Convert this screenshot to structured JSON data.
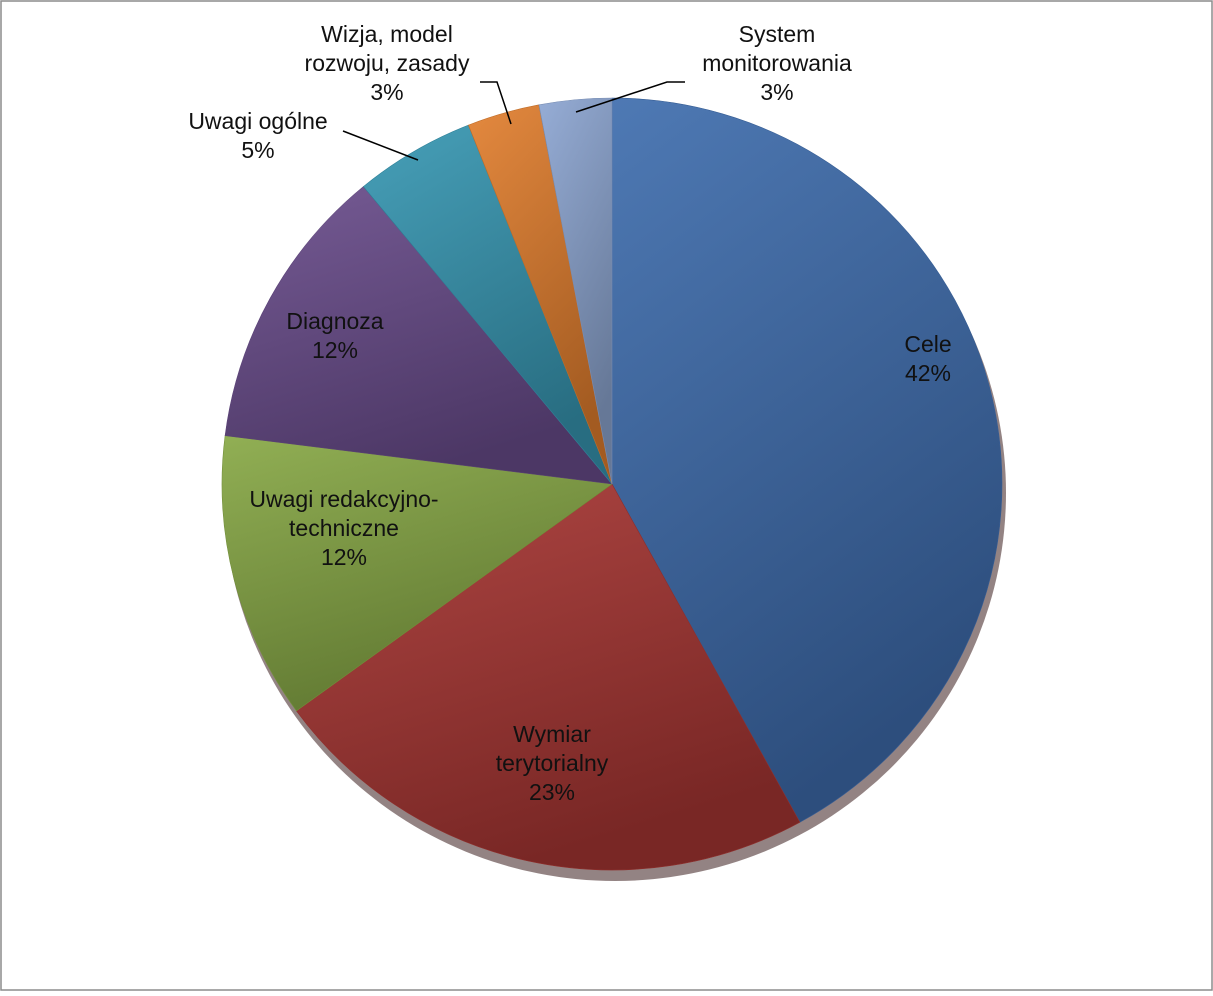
{
  "chart_data": {
    "type": "pie",
    "title": "",
    "legend": "none",
    "slices": [
      {
        "label": [
          "Cele"
        ],
        "value_label": "42%",
        "value": 42,
        "color": "#3F6DAE"
      },
      {
        "label": [
          "Wymiar",
          "terytorialny"
        ],
        "value_label": "23%",
        "value": 23,
        "color": "#A83633"
      },
      {
        "label": [
          "Uwagi redakcyjno-",
          "techniczne"
        ],
        "value_label": "12%",
        "value": 12,
        "color": "#87A845"
      },
      {
        "label": [
          "Diagnoza"
        ],
        "value_label": "12%",
        "value": 12,
        "color": "#6A4D8C"
      },
      {
        "label": [
          "Uwagi ogólne"
        ],
        "value_label": "5%",
        "value": 5,
        "color": "#3798B3"
      },
      {
        "label": [
          "Wizja, model",
          "rozwoju, zasady"
        ],
        "value_label": "3%",
        "value": 3,
        "color": "#E27F2E"
      },
      {
        "label": [
          "System",
          "monitorowania"
        ],
        "value_label": "3%",
        "value": 3,
        "color": "#8DA6D2"
      }
    ]
  }
}
